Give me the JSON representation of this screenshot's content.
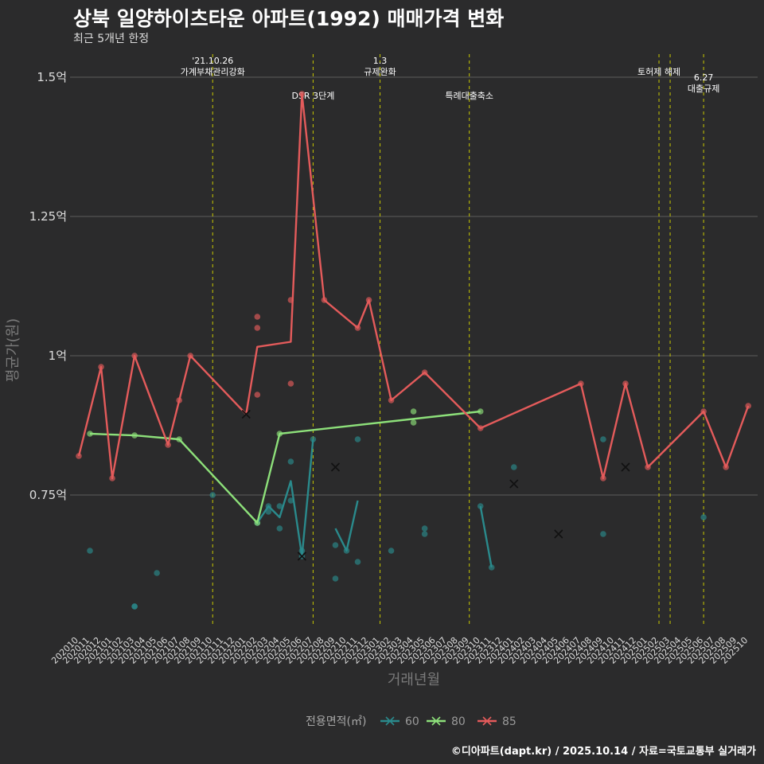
{
  "title": "상북 일양하이츠타운 아파트(1992) 매매가격 변화",
  "subtitle": "최근 5개년 한정",
  "caption": "©디아파트(dapt.kr) / 2025.10.14 / 자료=국토교통부 실거래가",
  "chart_data": {
    "type": "line",
    "xlabel": "거래년월",
    "ylabel": "평균가(원)",
    "ylim": [
      0.49,
      1.52
    ],
    "yticks": [
      {
        "value": 0.75,
        "label": "0.75억"
      },
      {
        "value": 1.0,
        "label": "1억"
      },
      {
        "value": 1.25,
        "label": "1.25억"
      },
      {
        "value": 1.5,
        "label": "1.5억"
      }
    ],
    "categories": [
      "202010",
      "202011",
      "202012",
      "202101",
      "202102",
      "202103",
      "202104",
      "202105",
      "202106",
      "202107",
      "202108",
      "202109",
      "202110",
      "202111",
      "202112",
      "202201",
      "202202",
      "202203",
      "202204",
      "202205",
      "202206",
      "202207",
      "202208",
      "202209",
      "202210",
      "202211",
      "202212",
      "202301",
      "202302",
      "202303",
      "202304",
      "202305",
      "202306",
      "202307",
      "202308",
      "202309",
      "202310",
      "202311",
      "202312",
      "202401",
      "202402",
      "202403",
      "202404",
      "202405",
      "202406",
      "202407",
      "202408",
      "202409",
      "202410",
      "202411",
      "202412",
      "202501",
      "202502",
      "202503",
      "202504",
      "202505",
      "202506",
      "202507",
      "202508",
      "202509",
      "202510"
    ],
    "legend": {
      "title": "전용면적(㎡)",
      "items": [
        "60",
        "80",
        "85"
      ]
    },
    "colors": {
      "60": "#2a8a8c",
      "80": "#8de07a",
      "85": "#e45b5b",
      "vline": "#c8c800"
    },
    "annotations": [
      {
        "x": 12,
        "lines": [
          "'21.10.26",
          "가계부채관리강화"
        ],
        "level": 1
      },
      {
        "x": 21,
        "lines": [
          "DSR 3단계"
        ],
        "level": 2
      },
      {
        "x": 27,
        "lines": [
          "1.3",
          "규제완화"
        ],
        "level": 1
      },
      {
        "x": 35,
        "lines": [
          "특례대출축소"
        ],
        "level": 2
      },
      {
        "x": 52,
        "lines": [
          "토허제 해제"
        ],
        "level": 1
      },
      {
        "x": 53,
        "lines": [],
        "level": 1
      },
      {
        "x": 56,
        "lines": [
          "6.27",
          "대출규제"
        ],
        "level": 3
      }
    ],
    "series": [
      {
        "name": "60",
        "segments": [
          [
            [
              16,
              0.7
            ],
            [
              17,
              0.73
            ],
            [
              18,
              0.71
            ],
            [
              19,
              0.775
            ],
            [
              20,
              0.64
            ],
            [
              21,
              0.85
            ]
          ],
          [
            [
              23,
              0.69
            ],
            [
              24,
              0.65
            ],
            [
              25,
              0.74
            ]
          ],
          [
            [
              36,
              0.73
            ],
            [
              37,
              0.62
            ]
          ]
        ],
        "points": [
          [
            1,
            0.65
          ],
          [
            5,
            0.55
          ],
          [
            5,
            0.55
          ],
          [
            7,
            0.61
          ],
          [
            12,
            0.75
          ],
          [
            16,
            0.7
          ],
          [
            17,
            0.73
          ],
          [
            17,
            0.72
          ],
          [
            18,
            0.73
          ],
          [
            18,
            0.69
          ],
          [
            19,
            0.81
          ],
          [
            19,
            0.74
          ],
          [
            20,
            0.65
          ],
          [
            20,
            0.64
          ],
          [
            21,
            0.85
          ],
          [
            23,
            0.66
          ],
          [
            23,
            0.6
          ],
          [
            24,
            0.65
          ],
          [
            25,
            0.85
          ],
          [
            25,
            0.63
          ],
          [
            28,
            0.65
          ],
          [
            31,
            0.68
          ],
          [
            31,
            0.69
          ],
          [
            36,
            0.73
          ],
          [
            37,
            0.62
          ],
          [
            39,
            0.8
          ],
          [
            47,
            0.85
          ],
          [
            47,
            0.68
          ],
          [
            56,
            0.71
          ]
        ],
        "crosses": [
          [
            20,
            0.64
          ],
          [
            23,
            0.8
          ],
          [
            39,
            0.77
          ],
          [
            43,
            0.68
          ],
          [
            49,
            0.8
          ]
        ]
      },
      {
        "name": "80",
        "segments": [
          [
            [
              1,
              0.86
            ],
            [
              5,
              0.857
            ],
            [
              9,
              0.85
            ],
            [
              16,
              0.7
            ],
            [
              18,
              0.86
            ],
            [
              36,
              0.9
            ]
          ]
        ],
        "points": [
          [
            1,
            0.86
          ],
          [
            5,
            0.857
          ],
          [
            9,
            0.85
          ],
          [
            16,
            0.7
          ],
          [
            18,
            0.86
          ],
          [
            30,
            0.9
          ],
          [
            30,
            0.88
          ],
          [
            36,
            0.9
          ]
        ],
        "crosses": []
      },
      {
        "name": "85",
        "segments": [
          [
            [
              0,
              0.82
            ],
            [
              2,
              0.98
            ],
            [
              3,
              0.78
            ],
            [
              5,
              1.0
            ],
            [
              8,
              0.84
            ],
            [
              10,
              1.0
            ],
            [
              15,
              0.895
            ],
            [
              16,
              1.016
            ],
            [
              19,
              1.025
            ],
            [
              20,
              1.47
            ],
            [
              22,
              1.1
            ],
            [
              25,
              1.05
            ],
            [
              26,
              1.1
            ],
            [
              28,
              0.92
            ],
            [
              31,
              0.97
            ],
            [
              36,
              0.87
            ],
            [
              45,
              0.95
            ],
            [
              47,
              0.78
            ],
            [
              49,
              0.95
            ],
            [
              51,
              0.8
            ],
            [
              56,
              0.9
            ],
            [
              58,
              0.8
            ],
            [
              60,
              0.91
            ]
          ]
        ],
        "points": [
          [
            0,
            0.82
          ],
          [
            2,
            0.98
          ],
          [
            3,
            0.78
          ],
          [
            5,
            1.0
          ],
          [
            8,
            0.84
          ],
          [
            9,
            0.92
          ],
          [
            10,
            1.0
          ],
          [
            16,
            1.07
          ],
          [
            16,
            1.05
          ],
          [
            16,
            0.93
          ],
          [
            19,
            1.1
          ],
          [
            19,
            0.95
          ],
          [
            20,
            1.47
          ],
          [
            22,
            1.1
          ],
          [
            25,
            1.05
          ],
          [
            26,
            1.1
          ],
          [
            28,
            0.92
          ],
          [
            31,
            0.97
          ],
          [
            36,
            0.87
          ],
          [
            45,
            0.95
          ],
          [
            47,
            0.78
          ],
          [
            49,
            0.95
          ],
          [
            51,
            0.8
          ],
          [
            56,
            0.9
          ],
          [
            58,
            0.8
          ],
          [
            60,
            0.91
          ]
        ],
        "crosses": [
          [
            15,
            0.895
          ]
        ]
      }
    ]
  }
}
